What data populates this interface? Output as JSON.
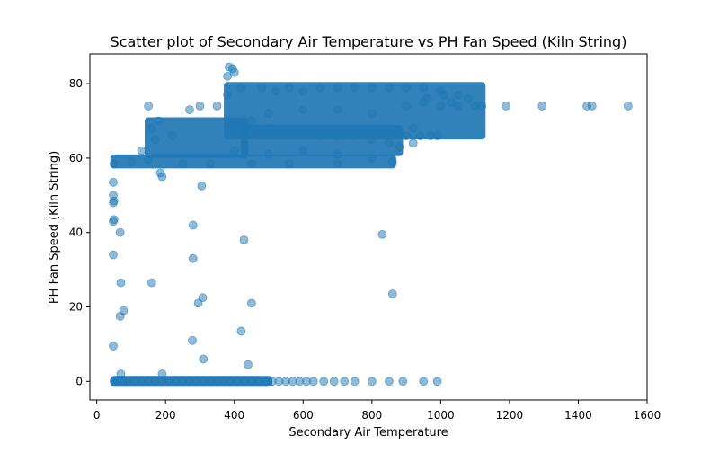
{
  "chart_data": {
    "type": "scatter",
    "title": "Scatter plot of Secondary Air Temperature vs PH Fan Speed  (Kiln String)",
    "xlabel": "Secondary Air Temperature",
    "ylabel": "PH Fan Speed  (Kiln String)",
    "xlim": [
      -20,
      1600
    ],
    "ylim": [
      -5,
      88
    ],
    "xticks": [
      0,
      200,
      400,
      600,
      800,
      1000,
      1200,
      1400,
      1600
    ],
    "yticks": [
      0,
      20,
      40,
      60,
      80
    ],
    "grid": false,
    "legend": "none",
    "marker_color": "#1f77b4",
    "marker_alpha": 0.5,
    "points": [
      {
        "x": 50,
        "y": 0
      },
      {
        "x": 60,
        "y": 0
      },
      {
        "x": 75,
        "y": 0
      },
      {
        "x": 90,
        "y": 0
      },
      {
        "x": 110,
        "y": 0
      },
      {
        "x": 130,
        "y": 0
      },
      {
        "x": 150,
        "y": 0
      },
      {
        "x": 170,
        "y": 0
      },
      {
        "x": 190,
        "y": 0
      },
      {
        "x": 210,
        "y": 0
      },
      {
        "x": 230,
        "y": 0
      },
      {
        "x": 250,
        "y": 0
      },
      {
        "x": 270,
        "y": 0
      },
      {
        "x": 290,
        "y": 0
      },
      {
        "x": 310,
        "y": 0
      },
      {
        "x": 330,
        "y": 0
      },
      {
        "x": 350,
        "y": 0
      },
      {
        "x": 370,
        "y": 0
      },
      {
        "x": 390,
        "y": 0
      },
      {
        "x": 410,
        "y": 0
      },
      {
        "x": 430,
        "y": 0
      },
      {
        "x": 450,
        "y": 0
      },
      {
        "x": 470,
        "y": 0
      },
      {
        "x": 490,
        "y": 0
      },
      {
        "x": 510,
        "y": 0
      },
      {
        "x": 530,
        "y": 0
      },
      {
        "x": 550,
        "y": 0
      },
      {
        "x": 570,
        "y": 0
      },
      {
        "x": 590,
        "y": 0
      },
      {
        "x": 610,
        "y": 0
      },
      {
        "x": 630,
        "y": 0
      },
      {
        "x": 660,
        "y": 0
      },
      {
        "x": 690,
        "y": 0
      },
      {
        "x": 720,
        "y": 0
      },
      {
        "x": 750,
        "y": 0
      },
      {
        "x": 800,
        "y": 0
      },
      {
        "x": 850,
        "y": 0
      },
      {
        "x": 890,
        "y": 0
      },
      {
        "x": 950,
        "y": 0
      },
      {
        "x": 990,
        "y": 0
      },
      {
        "x": 70,
        "y": 2
      },
      {
        "x": 190,
        "y": 2
      },
      {
        "x": 440,
        "y": 4.5
      },
      {
        "x": 310,
        "y": 6
      },
      {
        "x": 48,
        "y": 9.5
      },
      {
        "x": 278,
        "y": 11
      },
      {
        "x": 420,
        "y": 13.5
      },
      {
        "x": 68,
        "y": 17.5
      },
      {
        "x": 78,
        "y": 19
      },
      {
        "x": 295,
        "y": 21
      },
      {
        "x": 450,
        "y": 21
      },
      {
        "x": 308,
        "y": 22.5
      },
      {
        "x": 860,
        "y": 23.5
      },
      {
        "x": 70,
        "y": 26.5
      },
      {
        "x": 160,
        "y": 26.5
      },
      {
        "x": 280,
        "y": 33
      },
      {
        "x": 48,
        "y": 34
      },
      {
        "x": 428,
        "y": 38
      },
      {
        "x": 830,
        "y": 39.5
      },
      {
        "x": 68,
        "y": 40
      },
      {
        "x": 280,
        "y": 42
      },
      {
        "x": 48,
        "y": 43
      },
      {
        "x": 50,
        "y": 43.5
      },
      {
        "x": 48,
        "y": 48
      },
      {
        "x": 50,
        "y": 48.5
      },
      {
        "x": 48,
        "y": 50
      },
      {
        "x": 305,
        "y": 52.5
      },
      {
        "x": 48,
        "y": 53.5
      },
      {
        "x": 190,
        "y": 55
      },
      {
        "x": 185,
        "y": 56
      },
      {
        "x": 50,
        "y": 58.5
      },
      {
        "x": 100,
        "y": 59
      },
      {
        "x": 150,
        "y": 59.5
      },
      {
        "x": 250,
        "y": 58.5
      },
      {
        "x": 330,
        "y": 58.5
      },
      {
        "x": 450,
        "y": 58.5
      },
      {
        "x": 560,
        "y": 58.5
      },
      {
        "x": 700,
        "y": 58.5
      },
      {
        "x": 860,
        "y": 59
      },
      {
        "x": 130,
        "y": 62
      },
      {
        "x": 170,
        "y": 65
      },
      {
        "x": 160,
        "y": 68
      },
      {
        "x": 180,
        "y": 70
      },
      {
        "x": 150,
        "y": 74
      },
      {
        "x": 220,
        "y": 66
      },
      {
        "x": 270,
        "y": 73
      },
      {
        "x": 300,
        "y": 74
      },
      {
        "x": 350,
        "y": 74
      },
      {
        "x": 380,
        "y": 77
      },
      {
        "x": 385,
        "y": 84.5
      },
      {
        "x": 400,
        "y": 83
      },
      {
        "x": 380,
        "y": 82
      },
      {
        "x": 395,
        "y": 84
      },
      {
        "x": 420,
        "y": 79
      },
      {
        "x": 480,
        "y": 79
      },
      {
        "x": 520,
        "y": 78
      },
      {
        "x": 560,
        "y": 79
      },
      {
        "x": 600,
        "y": 78
      },
      {
        "x": 650,
        "y": 79
      },
      {
        "x": 700,
        "y": 79
      },
      {
        "x": 750,
        "y": 79
      },
      {
        "x": 800,
        "y": 79
      },
      {
        "x": 850,
        "y": 79
      },
      {
        "x": 900,
        "y": 79
      },
      {
        "x": 950,
        "y": 79
      },
      {
        "x": 1000,
        "y": 78
      },
      {
        "x": 1050,
        "y": 77
      },
      {
        "x": 1080,
        "y": 76
      },
      {
        "x": 450,
        "y": 70
      },
      {
        "x": 500,
        "y": 68
      },
      {
        "x": 550,
        "y": 67
      },
      {
        "x": 600,
        "y": 67
      },
      {
        "x": 650,
        "y": 66
      },
      {
        "x": 700,
        "y": 66
      },
      {
        "x": 750,
        "y": 66
      },
      {
        "x": 800,
        "y": 65
      },
      {
        "x": 850,
        "y": 64
      },
      {
        "x": 880,
        "y": 63
      },
      {
        "x": 900,
        "y": 66
      },
      {
        "x": 920,
        "y": 64
      },
      {
        "x": 940,
        "y": 66
      },
      {
        "x": 970,
        "y": 66
      },
      {
        "x": 990,
        "y": 66
      },
      {
        "x": 400,
        "y": 62
      },
      {
        "x": 500,
        "y": 61
      },
      {
        "x": 600,
        "y": 62
      },
      {
        "x": 700,
        "y": 61
      },
      {
        "x": 800,
        "y": 60
      },
      {
        "x": 500,
        "y": 72
      },
      {
        "x": 600,
        "y": 73
      },
      {
        "x": 700,
        "y": 73
      },
      {
        "x": 800,
        "y": 72
      },
      {
        "x": 900,
        "y": 74
      },
      {
        "x": 950,
        "y": 75
      },
      {
        "x": 1000,
        "y": 74
      },
      {
        "x": 1050,
        "y": 74
      },
      {
        "x": 1100,
        "y": 74
      },
      {
        "x": 1120,
        "y": 74
      },
      {
        "x": 1190,
        "y": 74
      },
      {
        "x": 1295,
        "y": 74
      },
      {
        "x": 1425,
        "y": 74
      },
      {
        "x": 1440,
        "y": 74
      },
      {
        "x": 1545,
        "y": 74
      },
      {
        "x": 920,
        "y": 68
      },
      {
        "x": 1010,
        "y": 77
      },
      {
        "x": 1030,
        "y": 75
      },
      {
        "x": 960,
        "y": 76
      }
    ],
    "bands": [
      {
        "x0": 380,
        "x1": 1120,
        "y0": 66,
        "y1": 79.5
      },
      {
        "x0": 150,
        "x1": 430,
        "y0": 61,
        "y1": 70
      },
      {
        "x0": 430,
        "x1": 880,
        "y0": 61.5,
        "y1": 68
      },
      {
        "x0": 50,
        "x1": 860,
        "y0": 58.2,
        "y1": 60
      },
      {
        "x0": 50,
        "x1": 500,
        "y0": -0.5,
        "y1": 0.5
      }
    ]
  }
}
